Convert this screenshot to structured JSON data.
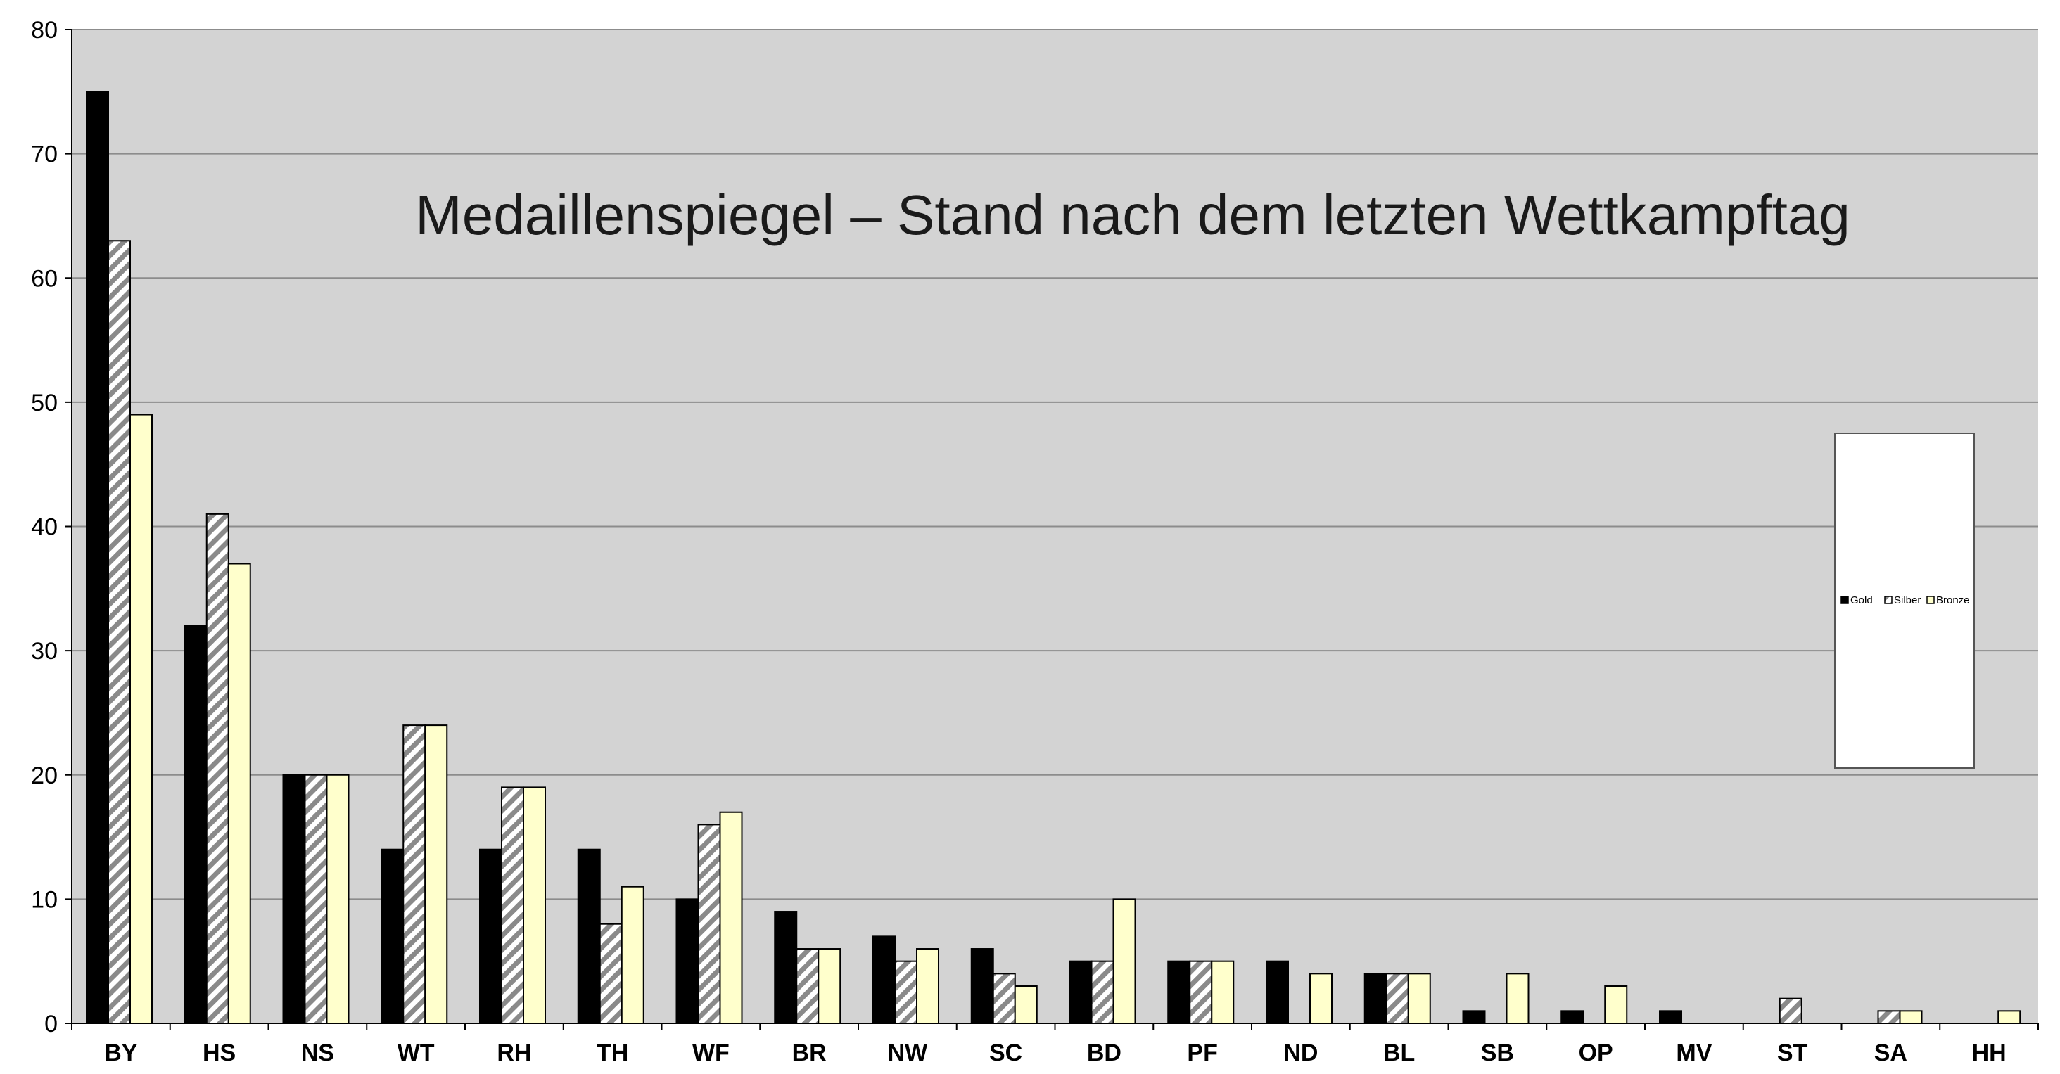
{
  "chart_data": {
    "type": "bar",
    "title": "Medaillenspiegel – Stand nach dem letzten Wettkampftag",
    "xlabel": "",
    "ylabel": "",
    "ylim": [
      0,
      80
    ],
    "yticks": [
      "0",
      "10",
      "20",
      "30",
      "40",
      "50",
      "60",
      "70",
      "80"
    ],
    "grid": true,
    "legend_position": "right",
    "categories": [
      "BY",
      "HS",
      "NS",
      "WT",
      "RH",
      "TH",
      "WF",
      "BR",
      "NW",
      "SC",
      "BD",
      "PF",
      "ND",
      "BL",
      "SB",
      "OP",
      "MV",
      "ST",
      "SA",
      "HH"
    ],
    "series": [
      {
        "name": "Gold",
        "color": "#000000",
        "values": [
          75,
          32,
          20,
          14,
          14,
          14,
          10,
          9,
          7,
          6,
          5,
          5,
          5,
          4,
          1,
          1,
          1,
          0,
          0,
          0
        ]
      },
      {
        "name": "Silber",
        "color": "#888888",
        "values": [
          63,
          41,
          20,
          24,
          19,
          8,
          16,
          6,
          5,
          4,
          5,
          5,
          0,
          4,
          0,
          0,
          0,
          2,
          1,
          0
        ]
      },
      {
        "name": "Bronze",
        "color": "#ffffcc",
        "values": [
          49,
          37,
          20,
          24,
          19,
          11,
          17,
          6,
          6,
          3,
          10,
          5,
          4,
          4,
          4,
          3,
          0,
          0,
          1,
          1
        ]
      }
    ],
    "plot_background": "#d3d3d3"
  }
}
